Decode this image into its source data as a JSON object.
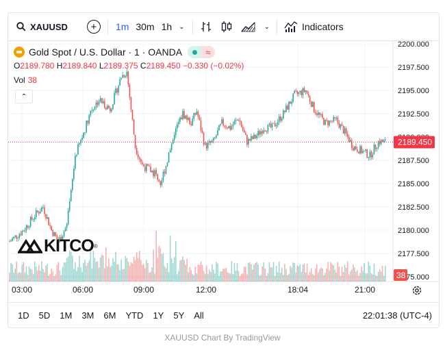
{
  "toolbar": {
    "symbol": "XAUUSD",
    "intervals": [
      "1m",
      "30m",
      "1h"
    ],
    "active_interval": "1m",
    "indicators_label": "Indicators",
    "icons": [
      "search-icon",
      "add-symbol-icon",
      "chevron-down-icon",
      "bar-chart-icon",
      "candles-icon",
      "area-chart-icon",
      "chevron-down-icon",
      "indicators-icon"
    ]
  },
  "legend": {
    "title": "Gold Spot / U.S. Dollar · 1 · OANDA",
    "o_label": "O",
    "o_value": "2189.780",
    "h_label": "H",
    "h_value": "2189.840",
    "l_label": "L",
    "l_value": "2189.375",
    "c_label": "C",
    "c_value": "2189.450",
    "change": "−0.330 (−0.02%)",
    "vol_label": "Vol",
    "vol_value": "38",
    "collapse_icon": "chevron-up-icon"
  },
  "logo": {
    "text": "KITCO",
    "reg": "®"
  },
  "bottom": {
    "ranges": [
      "1D",
      "5D",
      "1M",
      "3M",
      "6M",
      "YTD",
      "1Y",
      "5Y",
      "All"
    ],
    "time": "22:01:38",
    "tz": "(UTC-4)"
  },
  "credit": {
    "symbol": "XAUUSD",
    "chart": "Chart",
    "by": "By",
    "brand": "TradingView"
  },
  "colors": {
    "up": "#26a69a",
    "down": "#ef5350",
    "accent": "#2962ff",
    "price_line": "#f23645"
  },
  "chart_data": {
    "type": "candlestick",
    "yticks": [
      "2200.000",
      "2197.500",
      "2195.000",
      "2192.500",
      "2190.000",
      "2187.500",
      "2185.000",
      "2182.500",
      "2180.000",
      "2177.500",
      "2175.000"
    ],
    "ylim": [
      2175.0,
      2200.0
    ],
    "xticks": [
      "03:00",
      "06:00",
      "09:00",
      "12:00",
      "18:04",
      "21:00"
    ],
    "last_price": "2189.450",
    "last_volume": "38",
    "grid": true,
    "price_path": [
      [
        0,
        2178.8
      ],
      [
        10,
        2180.0
      ],
      [
        18,
        2181.6
      ],
      [
        24,
        2182.5
      ],
      [
        30,
        2180.0
      ],
      [
        35,
        2178.8
      ],
      [
        41,
        2180.5
      ],
      [
        44,
        2184.0
      ],
      [
        47,
        2188.0
      ],
      [
        52,
        2190.0
      ],
      [
        58,
        2192.8
      ],
      [
        64,
        2194.0
      ],
      [
        72,
        2193.0
      ],
      [
        80,
        2196.5
      ],
      [
        84,
        2197.0
      ],
      [
        90,
        2189.0
      ],
      [
        95,
        2187.0
      ],
      [
        100,
        2186.5
      ],
      [
        105,
        2186.0
      ],
      [
        108,
        2185.0
      ],
      [
        112,
        2187.0
      ],
      [
        118,
        2190.5
      ],
      [
        124,
        2192.5
      ],
      [
        130,
        2191.5
      ],
      [
        134,
        2192.8
      ],
      [
        140,
        2189.0
      ],
      [
        146,
        2189.5
      ],
      [
        152,
        2191.5
      ],
      [
        158,
        2191.0
      ],
      [
        164,
        2192.0
      ],
      [
        170,
        2189.5
      ],
      [
        176,
        2190.0
      ],
      [
        182,
        2191.0
      ],
      [
        188,
        2191.0
      ],
      [
        196,
        2192.5
      ],
      [
        204,
        2194.5
      ],
      [
        212,
        2195.0
      ],
      [
        218,
        2193.0
      ],
      [
        226,
        2191.5
      ],
      [
        234,
        2191.8
      ],
      [
        240,
        2190.5
      ],
      [
        246,
        2189.0
      ],
      [
        252,
        2188.5
      ],
      [
        258,
        2188.0
      ],
      [
        264,
        2189.5
      ],
      [
        270,
        2189.45
      ]
    ]
  }
}
